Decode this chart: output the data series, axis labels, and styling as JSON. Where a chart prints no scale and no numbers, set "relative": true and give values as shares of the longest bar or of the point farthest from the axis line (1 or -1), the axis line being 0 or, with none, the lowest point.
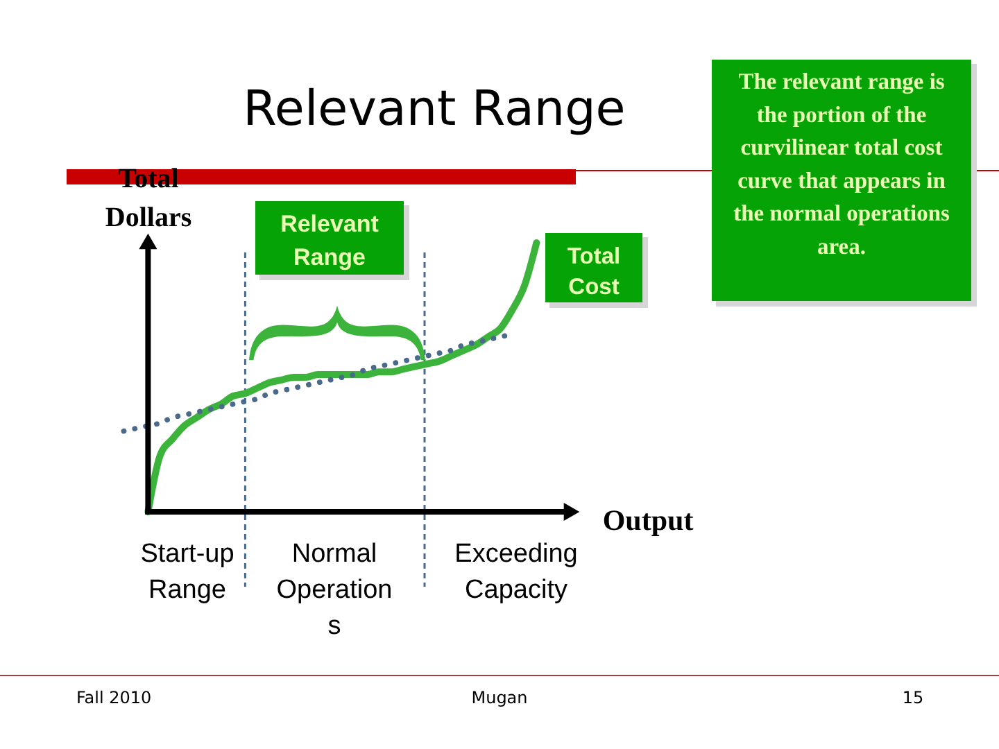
{
  "chart_data": {
    "type": "line",
    "title": "Relevant Range",
    "ylabel": "Total Dollars",
    "xlabel": "Output",
    "relative": true,
    "categories": [
      null,
      null,
      null,
      null,
      null,
      null,
      null,
      null,
      null,
      null,
      null,
      null,
      null,
      null,
      null,
      null,
      null,
      null,
      null,
      null,
      null,
      null,
      null,
      null,
      null,
      null,
      null,
      null,
      null,
      null,
      null,
      null,
      null,
      null,
      null
    ],
    "series": [
      {
        "name": "Total Cost",
        "color": "#3cb43c",
        "line_style": "solid",
        "values": [
          null,
          null,
          0,
          0.21,
          0.27,
          0.32,
          0.35,
          0.38,
          0.4,
          0.43,
          0.44,
          0.46,
          0.48,
          0.49,
          0.5,
          0.5,
          0.51,
          0.51,
          0.51,
          0.51,
          0.51,
          0.52,
          0.52,
          0.53,
          0.54,
          0.55,
          0.56,
          0.58,
          0.6,
          0.62,
          0.65,
          0.68,
          0.75,
          0.84,
          1
        ]
      },
      {
        "color": "#4a6a8c",
        "line_style": "dotted",
        "values": [
          0.3,
          0.31,
          0.32,
          0.33,
          0.35,
          0.36,
          0.37,
          0.38,
          0.39,
          0.4,
          0.41,
          0.42,
          0.44,
          0.45,
          0.46,
          0.47,
          0.48,
          0.49,
          0.5,
          0.51,
          0.53,
          0.54,
          0.55,
          0.56,
          0.57,
          0.58,
          0.59,
          0.6,
          0.62,
          0.63,
          0.64,
          0.65,
          0.66,
          null,
          null
        ]
      }
    ],
    "annotations": [
      "Relevant Range",
      "The relevant range is the portion of the curvilinear total cost curve that appears in the normal operations area.",
      "Start-up Range",
      "Normal Operations",
      "Exceeding Capacity",
      "Fall 2010",
      "Mugan",
      "15"
    ]
  }
}
